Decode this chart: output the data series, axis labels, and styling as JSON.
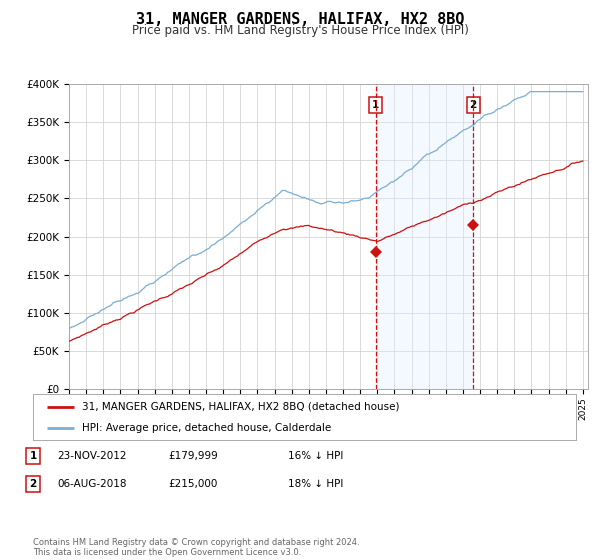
{
  "title": "31, MANGER GARDENS, HALIFAX, HX2 8BQ",
  "subtitle": "Price paid vs. HM Land Registry's House Price Index (HPI)",
  "title_fontsize": 11,
  "subtitle_fontsize": 8.5,
  "background_color": "#ffffff",
  "plot_bg_color": "#ffffff",
  "grid_color": "#cccccc",
  "hpi_color": "#7aaed4",
  "price_color": "#cc1111",
  "ylim": [
    0,
    400000
  ],
  "yticks": [
    0,
    50000,
    100000,
    150000,
    200000,
    250000,
    300000,
    350000,
    400000
  ],
  "ytick_labels": [
    "£0",
    "£50K",
    "£100K",
    "£150K",
    "£200K",
    "£250K",
    "£300K",
    "£350K",
    "£400K"
  ],
  "marker1_date": 2012.9,
  "marker1_price": 179999,
  "marker2_date": 2018.6,
  "marker2_price": 215000,
  "legend_line1": "31, MANGER GARDENS, HALIFAX, HX2 8BQ (detached house)",
  "legend_line2": "HPI: Average price, detached house, Calderdale",
  "shade_color": "#ddeeff",
  "vline_color": "#cc1111",
  "marker_box_color": "#cc1111",
  "footnote": "Contains HM Land Registry data © Crown copyright and database right 2024.\nThis data is licensed under the Open Government Licence v3.0.",
  "ann1_date": "23-NOV-2012",
  "ann1_price": "£179,999",
  "ann1_hpi": "16% ↓ HPI",
  "ann2_date": "06-AUG-2018",
  "ann2_price": "£215,000",
  "ann2_hpi": "18% ↓ HPI"
}
